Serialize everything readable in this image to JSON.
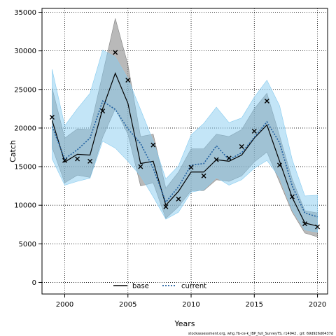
{
  "chart_data": {
    "type": "line",
    "xlabel": "Years",
    "ylabel": "Catch",
    "xlim": [
      1998.2,
      2020.8
    ],
    "ylim": [
      -1500,
      35500
    ],
    "x_ticks": [
      2000,
      2005,
      2010,
      2015,
      2020
    ],
    "y_ticks": [
      0,
      5000,
      10000,
      15000,
      20000,
      25000,
      30000,
      35000
    ],
    "grid": true,
    "legend_position": "bottom-center",
    "footnote": "stockassessment.org, whg.7b-ce-k_IBP_full_SurveyTS, r14942 , git: 69d926d0437d",
    "x": [
      1999,
      2000,
      2001,
      2002,
      2003,
      2004,
      2005,
      2006,
      2007,
      2008,
      2009,
      2010,
      2011,
      2012,
      2013,
      2014,
      2015,
      2016,
      2017,
      2018,
      2019,
      2020
    ],
    "observed": [
      21400,
      15800,
      16000,
      15700,
      22200,
      29800,
      26200,
      15000,
      17800,
      9800,
      10800,
      14900,
      13800,
      15900,
      16100,
      17600,
      19600,
      23500,
      15200,
      11100,
      7600,
      7200
    ],
    "series": [
      {
        "name": "base",
        "color": "#000000",
        "band_color": "#808080",
        "values": [
          21000,
          15600,
          16600,
          16500,
          22500,
          27100,
          23200,
          15400,
          15700,
          10000,
          11800,
          14300,
          14300,
          15900,
          15700,
          16500,
          18700,
          20400,
          15700,
          11000,
          7700,
          7300
        ],
        "lower": [
          17500,
          12900,
          13900,
          13600,
          18800,
          22500,
          19200,
          12500,
          12900,
          8300,
          9800,
          11900,
          11900,
          13300,
          13100,
          13800,
          15600,
          16900,
          13000,
          9100,
          6400,
          5900
        ],
        "upper": [
          25200,
          18700,
          19900,
          19800,
          27000,
          34200,
          28200,
          18900,
          19200,
          12200,
          14300,
          17300,
          17300,
          19200,
          18900,
          19800,
          22500,
          24500,
          19000,
          13400,
          9300,
          9000
        ]
      },
      {
        "name": "current",
        "color": "#1f5fa0",
        "band_color": "#87cbef",
        "values": [
          20200,
          16000,
          17200,
          18700,
          23500,
          22400,
          19900,
          18000,
          14800,
          10400,
          12400,
          15200,
          15400,
          17700,
          15900,
          16800,
          18800,
          20800,
          18100,
          12500,
          9000,
          8500
        ],
        "lower": [
          16000,
          12600,
          13100,
          13500,
          18300,
          17400,
          15700,
          13800,
          11100,
          8200,
          9100,
          11700,
          12000,
          13600,
          12600,
          13300,
          14800,
          15800,
          13600,
          9400,
          6800,
          6500
        ],
        "upper": [
          27600,
          20300,
          22500,
          24500,
          30100,
          29200,
          26400,
          22400,
          18300,
          13400,
          15100,
          19100,
          20600,
          22700,
          20700,
          21300,
          24000,
          26200,
          22900,
          15900,
          11200,
          11300
        ]
      }
    ]
  }
}
